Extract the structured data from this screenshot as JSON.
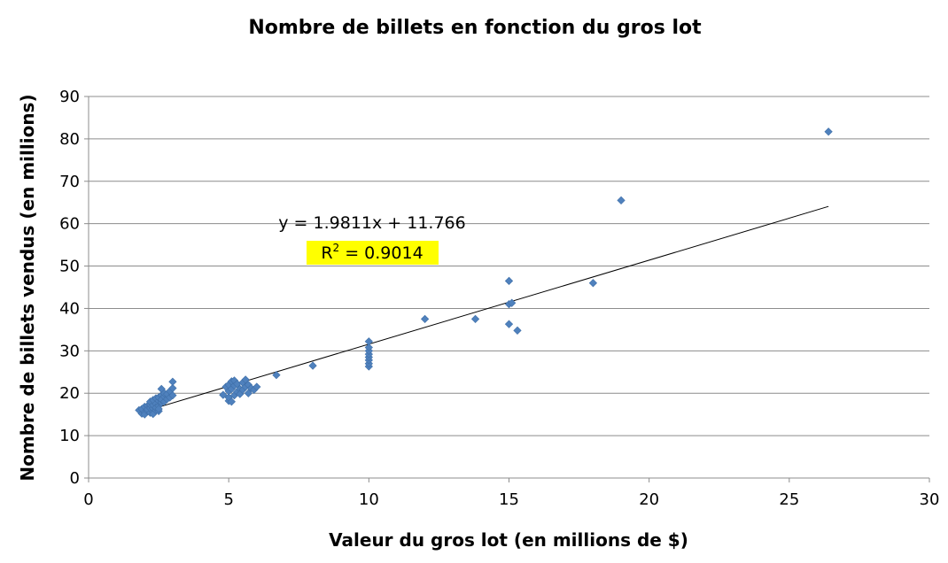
{
  "chart_data": {
    "type": "scatter",
    "title": "Nombre de billets en fonction du gros lot",
    "xlabel": "Valeur du gros lot (en millions de $)",
    "ylabel": "Nombre de billets vendus (en millions)",
    "xlim": [
      0,
      30
    ],
    "ylim": [
      0,
      90
    ],
    "x_ticks": [
      "0",
      "5",
      "10",
      "15",
      "20",
      "25",
      "30"
    ],
    "y_ticks": [
      "0",
      "10",
      "20",
      "30",
      "40",
      "50",
      "60",
      "70",
      "80",
      "90"
    ],
    "grid": "horizontal",
    "legend": "none",
    "marker_color": "#4F81BD",
    "trendline": {
      "equation": "y = 1.9811x + 11.766",
      "r2_label_prefix": "R",
      "r2_label_sup": "2",
      "r2_label_rest": " = 0.9014",
      "slope": 1.9811,
      "intercept": 11.766,
      "x_range": [
        1.8,
        26.4
      ],
      "color": "#000000",
      "highlight_color": "#FFFF00"
    },
    "points": [
      [
        1.8,
        16.0
      ],
      [
        1.9,
        15.2
      ],
      [
        1.9,
        16.3
      ],
      [
        2.0,
        15.5
      ],
      [
        2.0,
        16.8
      ],
      [
        2.0,
        15.0
      ],
      [
        2.1,
        15.8
      ],
      [
        2.1,
        17.0
      ],
      [
        2.1,
        16.2
      ],
      [
        2.2,
        15.4
      ],
      [
        2.2,
        16.5
      ],
      [
        2.2,
        17.3
      ],
      [
        2.2,
        18.0
      ],
      [
        2.3,
        15.6
      ],
      [
        2.3,
        16.4
      ],
      [
        2.3,
        17.2
      ],
      [
        2.3,
        18.4
      ],
      [
        2.3,
        15.1
      ],
      [
        2.4,
        16.0
      ],
      [
        2.4,
        17.5
      ],
      [
        2.4,
        18.8
      ],
      [
        2.4,
        16.6
      ],
      [
        2.5,
        15.8
      ],
      [
        2.5,
        17.0
      ],
      [
        2.5,
        18.2
      ],
      [
        2.5,
        19.0
      ],
      [
        2.5,
        16.3
      ],
      [
        2.6,
        17.8
      ],
      [
        2.6,
        19.5
      ],
      [
        2.6,
        21.0
      ],
      [
        2.6,
        18.5
      ],
      [
        2.7,
        18.0
      ],
      [
        2.7,
        19.2
      ],
      [
        2.7,
        20.0
      ],
      [
        2.8,
        18.6
      ],
      [
        2.8,
        19.8
      ],
      [
        2.9,
        19.0
      ],
      [
        2.9,
        20.5
      ],
      [
        3.0,
        21.2
      ],
      [
        3.0,
        22.7
      ],
      [
        3.0,
        19.5
      ],
      [
        4.8,
        19.6
      ],
      [
        4.9,
        21.5
      ],
      [
        5.0,
        18.2
      ],
      [
        5.0,
        19.0
      ],
      [
        5.0,
        20.5
      ],
      [
        5.0,
        22.0
      ],
      [
        5.1,
        18.0
      ],
      [
        5.1,
        21.0
      ],
      [
        5.1,
        22.8
      ],
      [
        5.2,
        19.5
      ],
      [
        5.2,
        21.8
      ],
      [
        5.2,
        23.0
      ],
      [
        5.3,
        20.3
      ],
      [
        5.3,
        22.2
      ],
      [
        5.4,
        21.0
      ],
      [
        5.4,
        19.8
      ],
      [
        5.5,
        22.5
      ],
      [
        5.5,
        20.8
      ],
      [
        5.6,
        21.5
      ],
      [
        5.6,
        23.2
      ],
      [
        5.7,
        22.0
      ],
      [
        5.7,
        20.0
      ],
      [
        5.8,
        21.2
      ],
      [
        5.9,
        20.8
      ],
      [
        6.0,
        21.5
      ],
      [
        6.7,
        24.3
      ],
      [
        8.0,
        26.5
      ],
      [
        10.0,
        26.3
      ],
      [
        10.0,
        27.0
      ],
      [
        10.0,
        27.8
      ],
      [
        10.0,
        28.5
      ],
      [
        10.0,
        29.2
      ],
      [
        10.0,
        30.0
      ],
      [
        10.0,
        30.8
      ],
      [
        10.0,
        32.2
      ],
      [
        12.0,
        37.5
      ],
      [
        13.8,
        37.5
      ],
      [
        15.0,
        36.3
      ],
      [
        15.0,
        41.0
      ],
      [
        15.0,
        46.5
      ],
      [
        15.1,
        41.3
      ],
      [
        15.3,
        34.8
      ],
      [
        18.0,
        46.0
      ],
      [
        19.0,
        65.5
      ],
      [
        26.4,
        81.7
      ]
    ]
  }
}
